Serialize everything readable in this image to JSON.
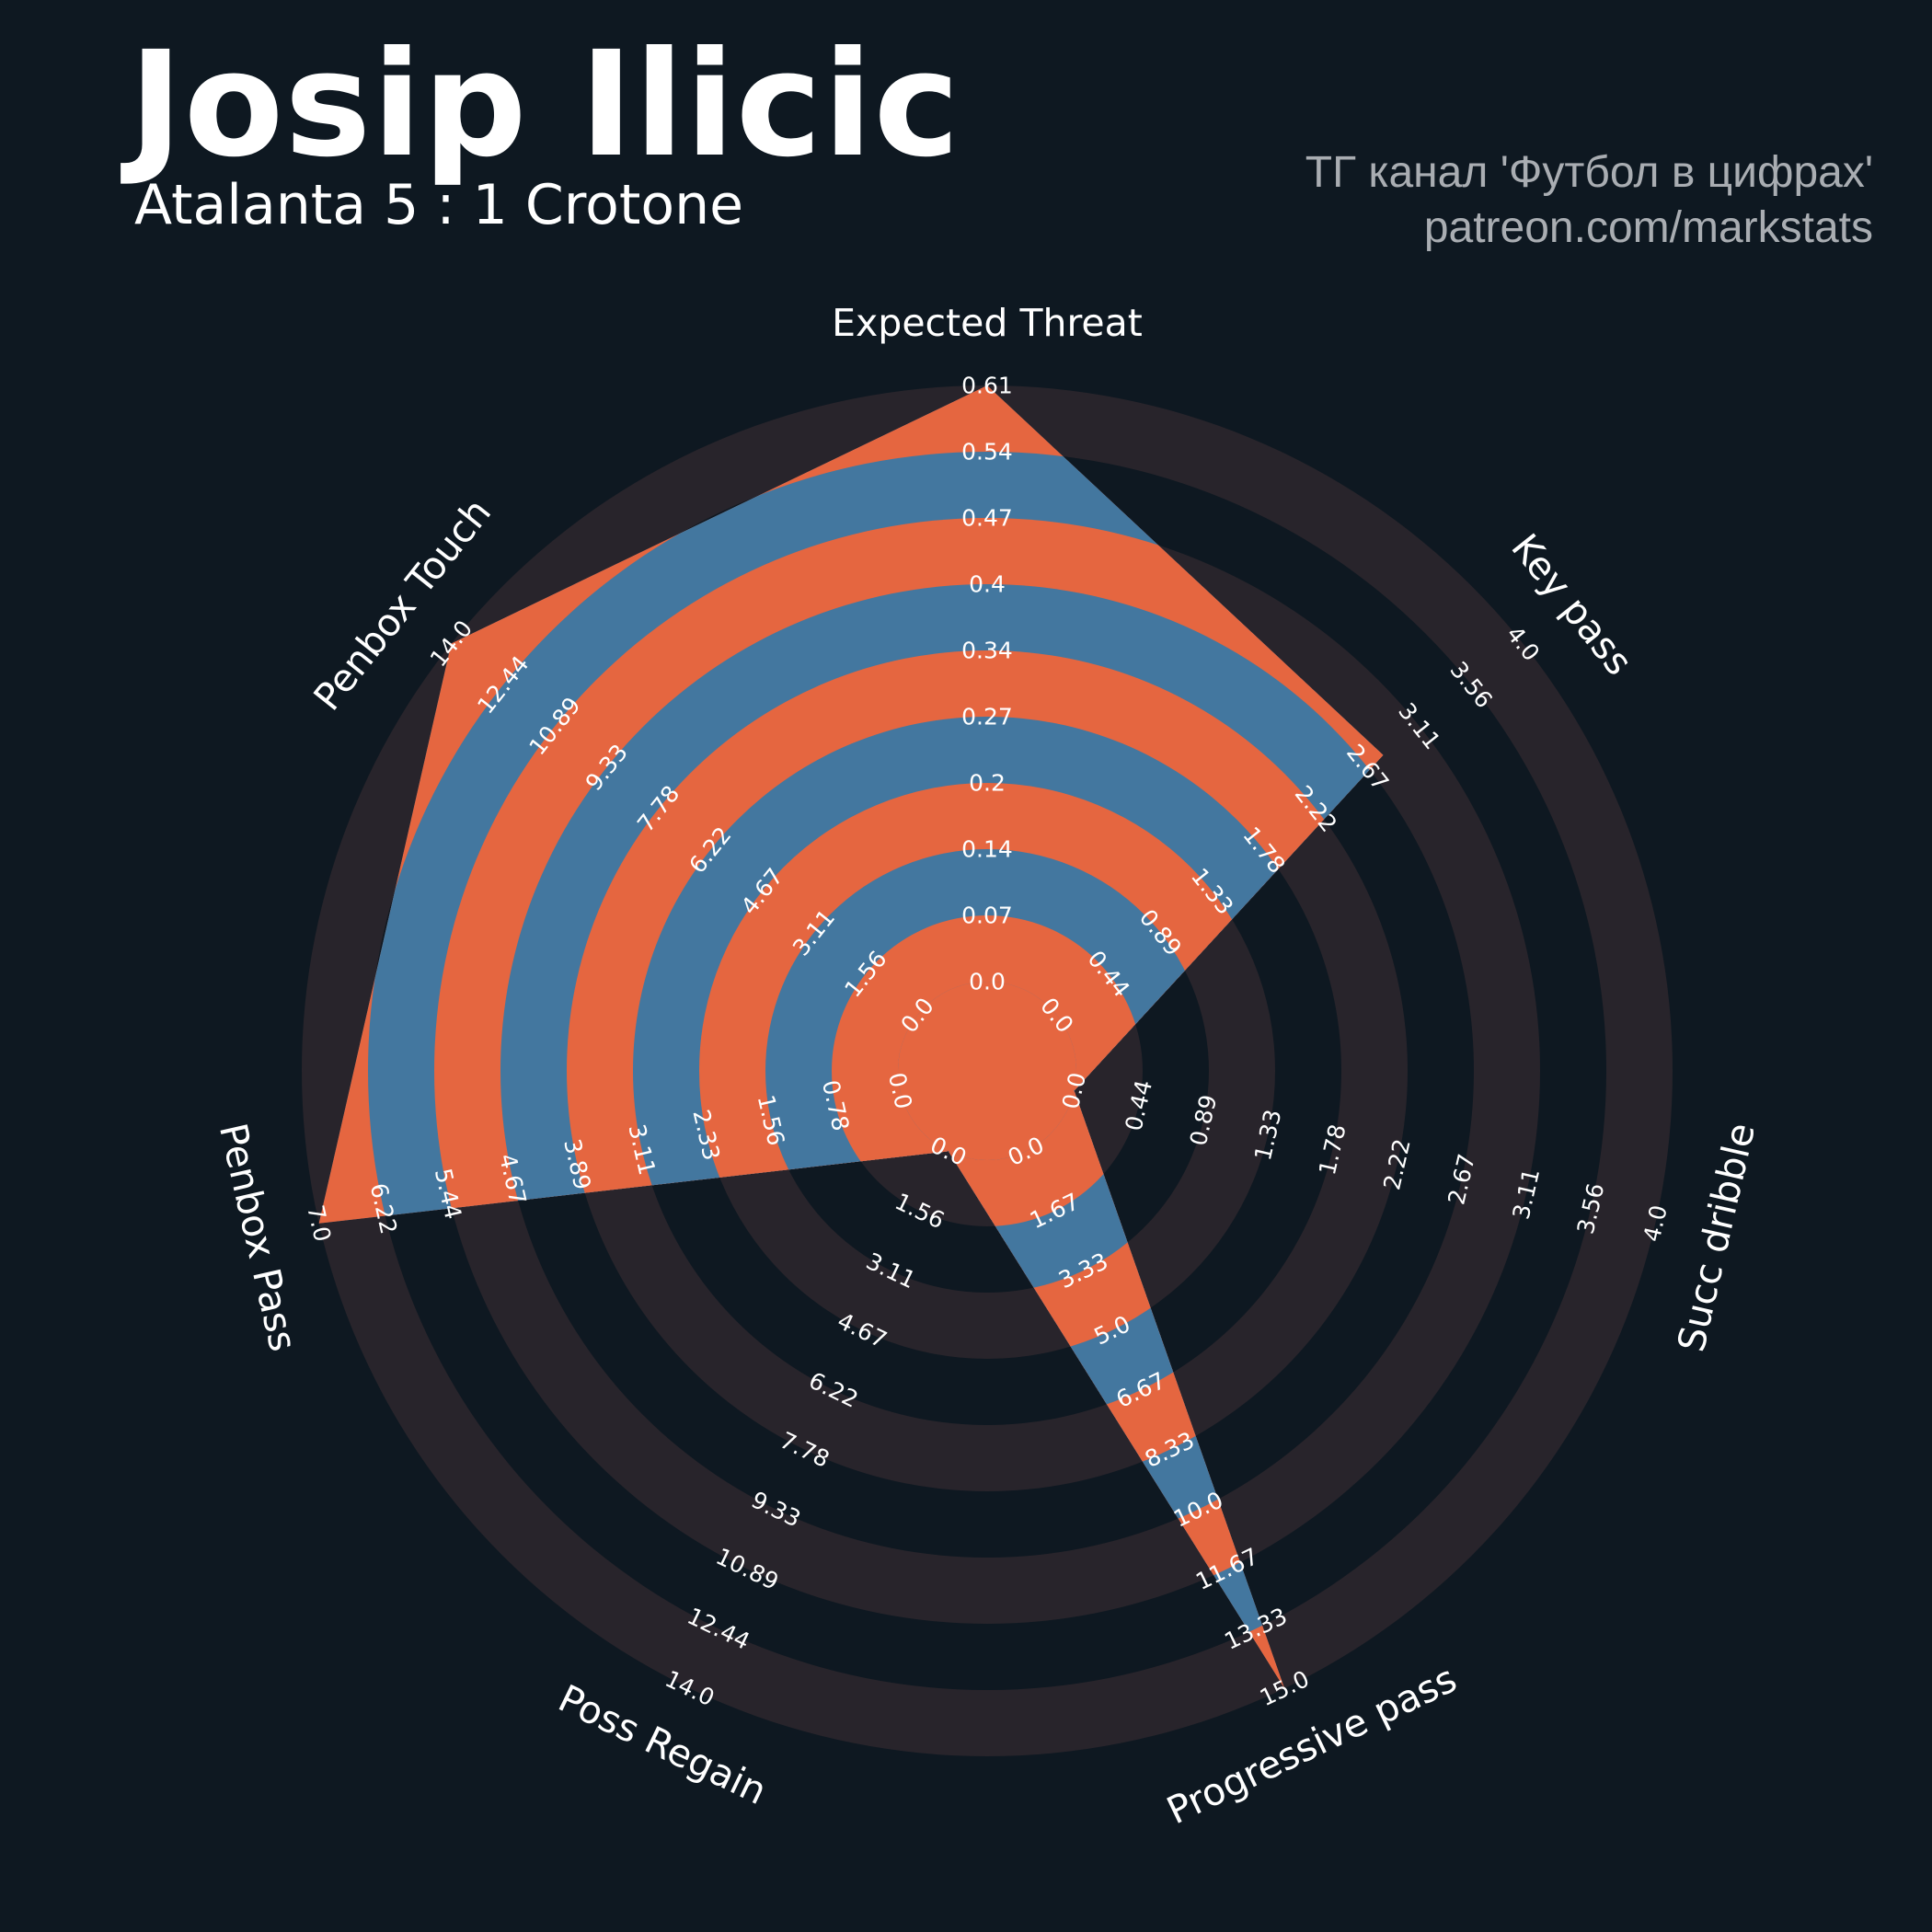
{
  "header": {
    "title": "Josip Ilicic",
    "subtitle": "Atalanta 5 : 1 Crotone",
    "credit_line1": "ТГ канал 'Футбол в цифрах'",
    "credit_line2": "patreon.com/markstats"
  },
  "colors": {
    "background": "#0e1821",
    "ring_light": "#28242b",
    "ring_dark": "#0e1821",
    "polygon_blue": "#43779f",
    "polygon_orange": "#e56640",
    "text": "#ffffff",
    "credit": "#a9adb2"
  },
  "chart_data": {
    "type": "radar",
    "title": "Josip Ilicic",
    "subtitle": "Atalanta 5 : 1 Crotone",
    "axes": [
      {
        "name": "Expected Threat",
        "min": 0.0,
        "max": 0.61,
        "value": 0.61,
        "ticks": [
          "0.0",
          "0.07",
          "0.14",
          "0.2",
          "0.27",
          "0.34",
          "0.4",
          "0.47",
          "0.54",
          "0.61"
        ]
      },
      {
        "name": "Key pass",
        "min": 0.0,
        "max": 4.0,
        "value": 2.8,
        "ticks": [
          "0.0",
          "0.44",
          "0.89",
          "1.33",
          "1.78",
          "2.22",
          "2.67",
          "3.11",
          "3.56",
          "4.0"
        ]
      },
      {
        "name": "Succ dribble",
        "min": 0.0,
        "max": 4.0,
        "value": 0.0,
        "ticks": [
          "0.0",
          "0.44",
          "0.89",
          "1.33",
          "1.78",
          "2.22",
          "2.67",
          "3.11",
          "3.56",
          "4.0"
        ]
      },
      {
        "name": "Progressive pass",
        "min": 0.0,
        "max": 15.0,
        "value": 15.0,
        "ticks": [
          "0.0",
          "1.67",
          "3.33",
          "5.0",
          "6.67",
          "8.33",
          "10.0",
          "11.67",
          "13.33",
          "15.0"
        ]
      },
      {
        "name": "Poss Regain",
        "min": 0.0,
        "max": 14.0,
        "value": 0.0,
        "ticks": [
          "0.0",
          "1.56",
          "3.11",
          "4.67",
          "6.22",
          "7.78",
          "9.33",
          "10.89",
          "12.44",
          "14.0"
        ]
      },
      {
        "name": "Penbox Pass",
        "min": 0.0,
        "max": 7.0,
        "value": 7.0,
        "ticks": [
          "0.0",
          "0.78",
          "1.56",
          "2.33",
          "3.11",
          "3.89",
          "4.67",
          "5.44",
          "6.22",
          "7.0"
        ]
      },
      {
        "name": "Penbox Touch",
        "min": 0.0,
        "max": 14.0,
        "value": 14.0,
        "ticks": [
          "0.0",
          "1.56",
          "3.11",
          "4.67",
          "6.22",
          "7.78",
          "9.33",
          "10.89",
          "12.44",
          "14.0"
        ]
      }
    ],
    "grid": true
  }
}
